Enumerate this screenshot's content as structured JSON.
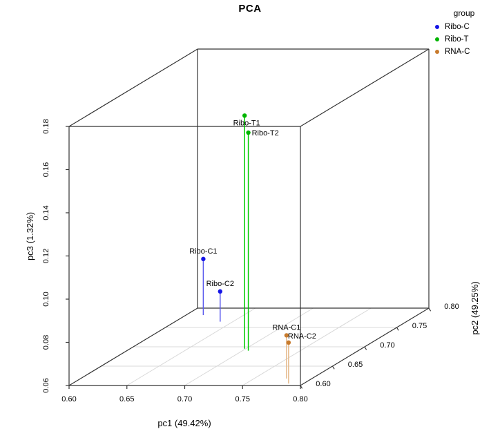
{
  "title": "PCA",
  "legend": {
    "title": "group",
    "items": [
      {
        "label": "Ribo-C",
        "color": "#1414E6"
      },
      {
        "label": "Ribo-T",
        "color": "#00B400"
      },
      {
        "label": "RNA-C",
        "color": "#C87B2D"
      }
    ]
  },
  "chart_data": {
    "type": "scatter",
    "subtype": "3d-scatterplot",
    "title": "PCA",
    "xlabel": "pc1 (49.42%)",
    "ylabel": "pc2 (49.25%)",
    "zlabel": "pc3 (1.32%)",
    "xlim": [
      0.6,
      0.8
    ],
    "ylim": [
      0.6,
      0.8
    ],
    "zlim": [
      0.06,
      0.18
    ],
    "xticks": [
      0.6,
      0.65,
      0.7,
      0.75,
      0.8
    ],
    "yticks": [
      0.6,
      0.65,
      0.7,
      0.75,
      0.8
    ],
    "zticks": [
      0.06,
      0.08,
      0.1,
      0.12,
      0.14,
      0.16,
      0.18
    ],
    "grid": true,
    "drop_lines": true,
    "legend_position": "top-right",
    "colors": {
      "box": "#333333",
      "grid": "#D8D8D8",
      "text": "#000000"
    },
    "series": [
      {
        "name": "Ribo-C",
        "point_color": "#1414E6",
        "line_color": "#5A5AEE",
        "points": [
          {
            "label": "Ribo-C1",
            "pc1": 0.615,
            "pc2": 0.782,
            "pc3": 0.086,
            "label_pos": "above"
          },
          {
            "label": "Ribo-C2",
            "pc1": 0.639,
            "pc2": 0.765,
            "pc3": 0.074,
            "label_pos": "above"
          }
        ]
      },
      {
        "name": "Ribo-T",
        "point_color": "#00B400",
        "line_color": "#00CC00",
        "points": [
          {
            "label": "Ribo-T1",
            "pc1": 0.699,
            "pc2": 0.695,
            "pc3": 0.168,
            "label_pos": "below"
          },
          {
            "label": "Ribo-T2",
            "pc1": 0.705,
            "pc2": 0.69,
            "pc3": 0.161,
            "label_pos": "right"
          }
        ]
      },
      {
        "name": "RNA-C",
        "point_color": "#C87B2D",
        "line_color": "#E5B98A",
        "points": [
          {
            "label": "RNA-C1",
            "pc1": 0.778,
            "pc2": 0.618,
            "pc3": 0.08,
            "label_pos": "above"
          },
          {
            "label": "RNA-C2",
            "pc1": 0.787,
            "pc2": 0.605,
            "pc3": 0.079,
            "label_pos": "above-right"
          }
        ]
      }
    ]
  }
}
